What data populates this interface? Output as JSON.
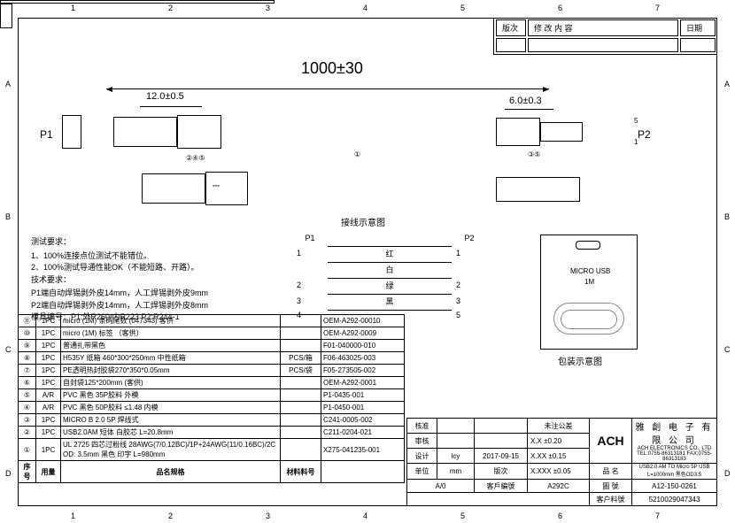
{
  "ruler": {
    "nums": [
      "1",
      "2",
      "3",
      "4",
      "5",
      "6",
      "7"
    ],
    "letters": [
      "A",
      "B",
      "C",
      "D"
    ]
  },
  "revision_header": {
    "rev": "版次",
    "change": "修 改 内 容",
    "date": "日期"
  },
  "dims": {
    "overall": "1000±30",
    "p1_len": "12.0±0.5",
    "p2_len": "6.0±0.3"
  },
  "labels": {
    "p1": "P1",
    "p2": "P2",
    "pin1": "1",
    "pin5": "5"
  },
  "callouts": {
    "p1_refs": "②④⑤",
    "p2_refs": "③⑤",
    "cable_ref": "①"
  },
  "requirements": {
    "test_title": "测试要求：",
    "test1": "1、100%连接点位测试不能错位。",
    "test2": "2、100%测试导通性能OK（不能短路、开路）。",
    "tech_title": "技术要求：",
    "tech1": "P1端自动焊锡剥外皮14mm，人工焊锡剥外皮9mm",
    "tech2": "P2端自动焊锡剥外皮14mm，人工焊锡剥外皮8mm",
    "tech3": "模具编号：P1:外R260/内R223  P2:R244-1"
  },
  "wiring": {
    "title": "接线示意图",
    "p1": "P1",
    "p2": "P2",
    "rows": [
      {
        "l": "1",
        "c": "红",
        "r": "1"
      },
      {
        "l": "",
        "c": "白",
        "r": ""
      },
      {
        "l": "2",
        "c": "绿",
        "r": "2"
      },
      {
        "l": "3",
        "c": "黑",
        "r": "3"
      },
      {
        "l": "4",
        "c": "",
        "r": "5"
      }
    ]
  },
  "packaging": {
    "label1": "MICRO USB",
    "label2": "1M",
    "title": "包装示意图"
  },
  "bom": {
    "header": {
      "idx": "序号",
      "qty": "用量",
      "spec": "品名规格",
      "mat": "材料料号",
      "pn": ""
    },
    "rows": [
      {
        "idx": "⑪",
        "qty": "1PC",
        "spec": "micro (1M) 条码尾数 (047343) 客供",
        "mat": "",
        "pn": "OEM-A292-00010"
      },
      {
        "idx": "⑩",
        "qty": "1PC",
        "spec": "micro (1M) 标签 （客供）",
        "mat": "",
        "pn": "OEM-A292-0009"
      },
      {
        "idx": "⑨",
        "qty": "1PC",
        "spec": "普通扎带黑色",
        "mat": "",
        "pn": "F01-040000-010"
      },
      {
        "idx": "⑧",
        "qty": "1PC",
        "spec": "H535Y 纸箱 460*300*250mm 中性纸箱",
        "mat": "PCS/箱",
        "pn": "F06-463025-003"
      },
      {
        "idx": "⑦",
        "qty": "1PC",
        "spec": "PE透明热封胶袋270*350*0.05mm",
        "mat": "PCS/袋",
        "pn": "F05-273505-002"
      },
      {
        "idx": "⑥",
        "qty": "1PC",
        "spec": "自封袋125*200mm (客供)",
        "mat": "",
        "pn": "OEM-A292-0001"
      },
      {
        "idx": "⑤",
        "qty": "A/R",
        "spec": "PVC 黑色 35P胶料            外模",
        "mat": "",
        "pn": "P1-0435-001"
      },
      {
        "idx": "④",
        "qty": "A/R",
        "spec": "PVC 黑色 50P胶料 ≤1.48   内模",
        "mat": "",
        "pn": "P1-0450-001"
      },
      {
        "idx": "③",
        "qty": "1PC",
        "spec": "MICRO B 2.0 5P 焊线式",
        "mat": "",
        "pn": "C241-0005-002"
      },
      {
        "idx": "②",
        "qty": "1PC",
        "spec": "USB2.0AM 短体 白胶芯 L=20.8mm",
        "mat": "",
        "pn": "C211-0204-021"
      },
      {
        "idx": "①",
        "qty": "1PC",
        "spec": "UL 2725 四芯过粉线 28AWG(7/0.12BC)/1P+24AWG(11/0.16BC)/2C OD: 3.5mm 黑色 印字 L=980mm",
        "mat": "",
        "pn": "X275-041235-001"
      }
    ]
  },
  "title_block": {
    "approve": "核准",
    "check": "审核",
    "design": "设计",
    "unit_lbl": "单位",
    "rev_lbl": "版次",
    "designer": "lcy",
    "date": "2017-09-15",
    "unit": "mm",
    "rev": "A/0",
    "tol_title": "未注公差",
    "tol1": "X.X     ±0.20",
    "tol2": "X.XX    ±0.15",
    "tol3": "X.XXX  ±0.05",
    "cust_lbl": "客戶編號",
    "cust": "A292C",
    "brand": "ACH",
    "company_cn": "雅 創 电 子 有 限 公 司",
    "company_en": "ACH ELECTRONICS CO., LTD",
    "company_sub": "TEL:0755-86313181 FAX:0755-86313183",
    "pm_lbl": "品 名",
    "pm": "USB2.0 AM TO Micro 5P USB L=1000mm 黑色OD3.5",
    "dwg_lbl": "圖  號",
    "dwg": "A12-150-0261",
    "cpn_lbl": "客户料號",
    "cpn": "5210029047343"
  }
}
